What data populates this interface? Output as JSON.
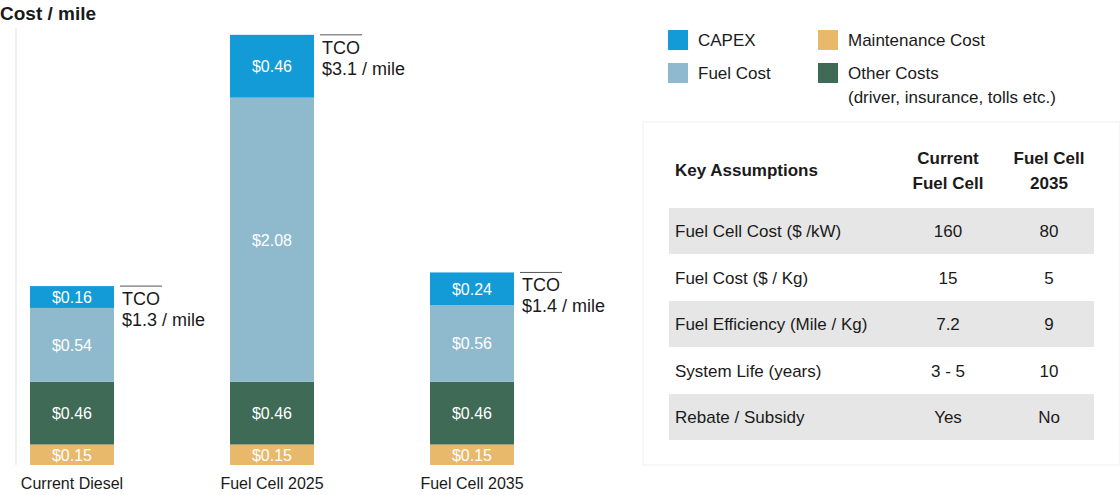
{
  "chart_data": {
    "type": "bar",
    "title": "Cost / mile",
    "stacked": true,
    "data_labels": true,
    "tick_labels": "x",
    "legend": "top-right",
    "categories": [
      "Current Diesel",
      "Fuel Cell 2025",
      "Fuel Cell 2035"
    ],
    "ylim": [
      0,
      3.2
    ],
    "yticks": [],
    "series": [
      {
        "name": "Maintenance Cost",
        "color": "#e8b96b",
        "values": [
          0.15,
          0.15,
          0.15
        ],
        "value_labels": [
          "$0.15",
          "$0.15",
          "$0.15"
        ]
      },
      {
        "name": "Other Costs (driver, insurance, tolls etc.)",
        "color": "#3e6a56",
        "values": [
          0.46,
          0.46,
          0.46
        ],
        "value_labels": [
          "$0.46",
          "$0.46",
          "$0.46"
        ]
      },
      {
        "name": "Fuel Cost",
        "color": "#8fb9cc",
        "values": [
          0.54,
          2.08,
          0.56
        ],
        "value_labels": [
          "$0.54",
          "$2.08",
          "$0.56"
        ]
      },
      {
        "name": "CAPEX",
        "color": "#139bd8",
        "values": [
          0.16,
          0.46,
          0.24
        ],
        "value_labels": [
          "$0.16",
          "$0.46",
          "$0.24"
        ]
      }
    ],
    "annotations": [
      {
        "title": "TCO",
        "text": "$1.3 / mile"
      },
      {
        "title": "TCO",
        "text": "$3.1 / mile"
      },
      {
        "title": "TCO",
        "text": "$1.4 / mile"
      }
    ]
  },
  "table": {
    "header": [
      "Key Assumptions",
      [
        "Current",
        "Fuel Cell"
      ],
      [
        "Fuel Cell",
        "2035"
      ]
    ],
    "rows": [
      [
        "Fuel Cell Cost ($ /kW)",
        160,
        80
      ],
      [
        "Fuel Cost ($ / Kg)",
        15,
        5
      ],
      [
        "Fuel Efficiency (Mile / Kg)",
        7.2,
        9
      ],
      [
        "System Life (years)",
        "3 - 5",
        10
      ],
      [
        "Rebate / Subsidy",
        "Yes",
        "No"
      ]
    ]
  }
}
